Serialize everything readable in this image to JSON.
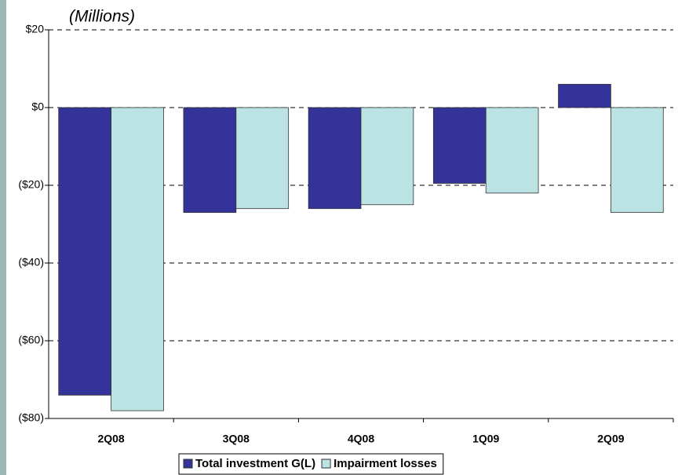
{
  "chart_data": {
    "type": "bar",
    "title": "(Millions)",
    "categories": [
      "2Q08",
      "3Q08",
      "4Q08",
      "1Q09",
      "2Q09"
    ],
    "series": [
      {
        "name": "Total investment G(L)",
        "color": "#333399",
        "values": [
          -74,
          -27,
          -26,
          -19.5,
          6
        ]
      },
      {
        "name": "Impairment losses",
        "color": "#bbe3e3",
        "values": [
          -78,
          -26,
          -25,
          -22,
          -27
        ]
      }
    ],
    "ylim": [
      -80,
      20
    ],
    "yticks": [
      {
        "value": -80,
        "label": "($80)"
      },
      {
        "value": -60,
        "label": "($60)"
      },
      {
        "value": -40,
        "label": "($40)"
      },
      {
        "value": -20,
        "label": "($20)"
      },
      {
        "value": 0,
        "label": "$0"
      },
      {
        "value": 20,
        "label": "$20"
      }
    ],
    "grid": true,
    "legend": "bottom"
  }
}
